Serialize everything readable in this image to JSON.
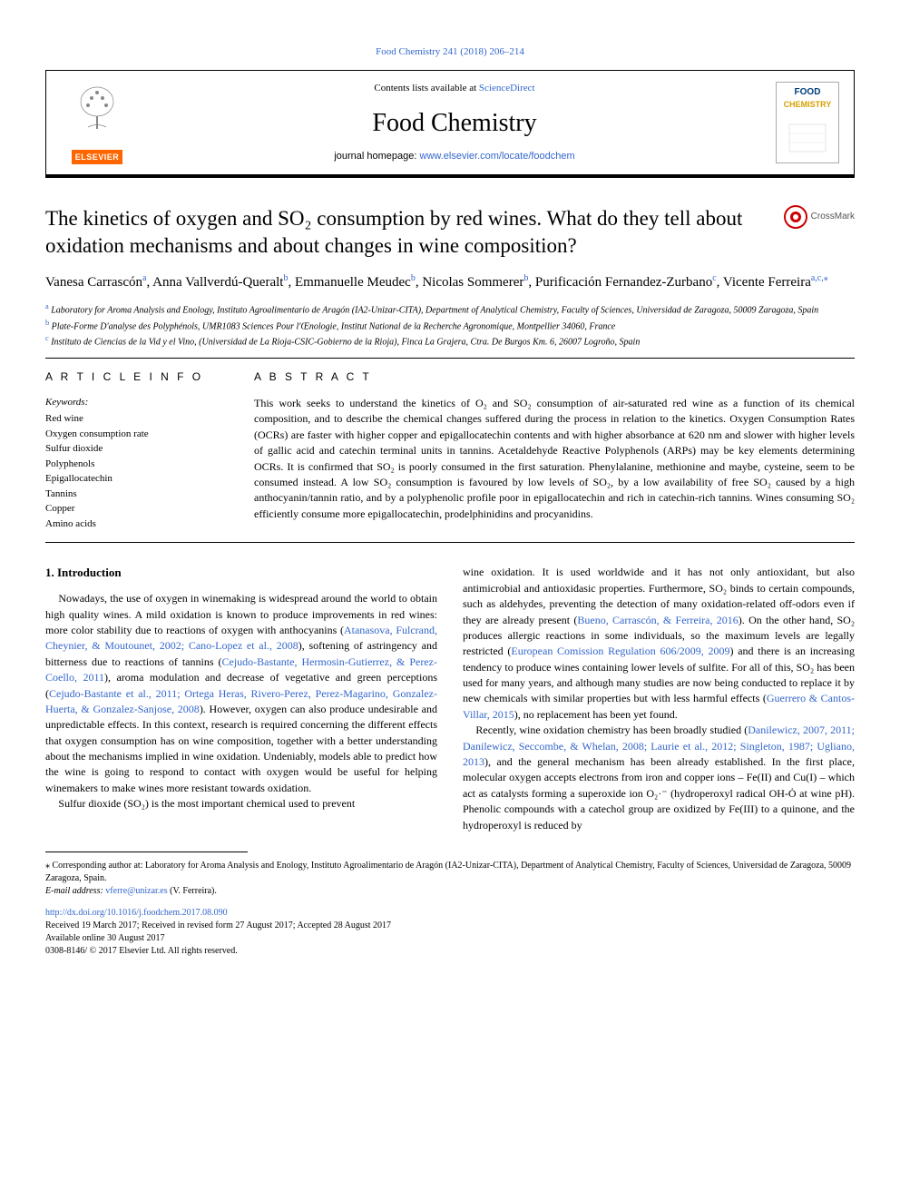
{
  "page_citation": "Food Chemistry 241 (2018) 206–214",
  "header": {
    "contents_prefix": "Contents lists available at ",
    "contents_link": "ScienceDirect",
    "journal": "Food Chemistry",
    "homepage_prefix": "journal homepage: ",
    "homepage_url": "www.elsevier.com/locate/foodchem",
    "publisher_word": "ELSEVIER",
    "cover_fc": "FOOD",
    "cover_chem": "CHEMISTRY"
  },
  "crossmark_label": "CrossMark",
  "title": "The kinetics of oxygen and SO₂ consumption by red wines. What do they tell about oxidation mechanisms and about changes in wine composition?",
  "authors_html": "Vanesa Carrascón<sup>a</sup>, Anna Vallverdú-Queralt<sup>b</sup>, Emmanuelle Meudec<sup>b</sup>, Nicolas Sommerer<sup>b</sup>, Purificación Fernandez-Zurbano<sup>c</sup>, Vicente Ferreira<sup>a,c,</sup>",
  "authors": [
    {
      "name": "Vanesa Carrascón",
      "sup": "a"
    },
    {
      "name": "Anna Vallverdú-Queralt",
      "sup": "b"
    },
    {
      "name": "Emmanuelle Meudec",
      "sup": "b"
    },
    {
      "name": "Nicolas Sommerer",
      "sup": "b"
    },
    {
      "name": "Purificación Fernandez-Zurbano",
      "sup": "c"
    },
    {
      "name": "Vicente Ferreira",
      "sup": "a,c,⁎"
    }
  ],
  "affiliations": [
    {
      "sup": "a",
      "text": "Laboratory for Aroma Analysis and Enology, Instituto Agroalimentario de Aragón (IA2-Unizar-CITA), Department of Analytical Chemistry, Faculty of Sciences, Universidad de Zaragoza, 50009 Zaragoza, Spain"
    },
    {
      "sup": "b",
      "text": "Plate-Forme D'analyse des Polyphénols, UMR1083 Sciences Pour l'Œnologie, Institut National de la Recherche Agronomique, Montpellier 34060, France"
    },
    {
      "sup": "c",
      "text": "Instituto de Ciencias de la Vid y el Vino, (Universidad de La Rioja-CSIC-Gobierno de la Rioja), Finca La Grajera, Ctra. De Burgos Km. 6, 26007 Logroño, Spain"
    }
  ],
  "article_info": {
    "heading": "A R T I C L E  I N F O",
    "keywords_label": "Keywords:",
    "keywords": [
      "Red wine",
      "Oxygen consumption rate",
      "Sulfur dioxide",
      "Polyphenols",
      "Epigallocatechin",
      "Tannins",
      "Copper",
      "Amino acids"
    ]
  },
  "abstract": {
    "heading": "A B S T R A C T",
    "text": "This work seeks to understand the kinetics of O₂ and SO₂ consumption of air-saturated red wine as a function of its chemical composition, and to describe the chemical changes suffered during the process in relation to the kinetics. Oxygen Consumption Rates (OCRs) are faster with higher copper and epigallocatechin contents and with higher absorbance at 620 nm and slower with higher levels of gallic acid and catechin terminal units in tannins. Acetaldehyde Reactive Polyphenols (ARPs) may be key elements determining OCRs. It is confirmed that SO₂ is poorly consumed in the first saturation. Phenylalanine, methionine and maybe, cysteine, seem to be consumed instead. A low SO₂ consumption is favoured by low levels of SO₂, by a low availability of free SO₂ caused by a high anthocyanin/tannin ratio, and by a polyphenolic profile poor in epigallocatechin and rich in catechin-rich tannins. Wines consuming SO₂ efficiently consume more epigallocatechin, prodelphinidins and procyanidins."
  },
  "section_heading": "1. Introduction",
  "col1": {
    "p1a": "Nowadays, the use of oxygen in winemaking is widespread around the world to obtain high quality wines. A mild oxidation is known to produce improvements in red wines: more color stability due to reactions of oxygen with anthocyanins (",
    "p1_ref1": "Atanasova, Fulcrand, Cheynier, & Moutounet, 2002; Cano-Lopez et al., 2008",
    "p1b": "), softening of astringency and bitterness due to reactions of tannins (",
    "p1_ref2": "Cejudo-Bastante, Hermosin-Gutierrez, & Perez-Coello, 2011",
    "p1c": "), aroma modulation and decrease of vegetative and green perceptions (",
    "p1_ref3": "Cejudo-Bastante et al., 2011; Ortega Heras, Rivero-Perez, Perez-Magarino, Gonzalez-Huerta, & Gonzalez-Sanjose, 2008",
    "p1d": "). However, oxygen can also produce undesirable and unpredictable effects. In this context, research is required concerning the different effects that oxygen consumption has on wine composition, together with a better understanding about the mechanisms implied in wine oxidation. Undeniably, models able to predict how the wine is going to respond to contact with oxygen would be useful for helping winemakers to make wines more resistant towards oxidation.",
    "p2": "Sulfur dioxide (SO₂) is the most important chemical used to prevent"
  },
  "col2": {
    "p1a": "wine oxidation. It is used worldwide and it has not only antioxidant, but also antimicrobial and antioxidasic properties. Furthermore, SO₂ binds to certain compounds, such as aldehydes, preventing the detection of many oxidation-related off-odors even if they are already present (",
    "p1_ref1": "Bueno, Carrascón, & Ferreira, 2016",
    "p1b": "). On the other hand, SO₂ produces allergic reactions in some individuals, so the maximum levels are legally restricted (",
    "p1_ref2": "European Comission Regulation 606/2009, 2009",
    "p1c": ") and there is an increasing tendency to produce wines containing lower levels of sulfite. For all of this, SO₂ has been used for many years, and although many studies are now being conducted to replace it by new chemicals with similar properties but with less harmful effects (",
    "p1_ref3": "Guerrero & Cantos-Villar, 2015",
    "p1d": "), no replacement has been yet found.",
    "p2a": "Recently, wine oxidation chemistry has been broadly studied (",
    "p2_ref1": "Danilewicz, 2007, 2011; Danilewicz, Seccombe, & Whelan, 2008; Laurie et al., 2012; Singleton, 1987; Ugliano, 2013",
    "p2b": "), and the general mechanism has been already established. In the first place, molecular oxygen accepts electrons from iron and copper ions – Fe(II) and Cu(I) – which act as catalysts forming a superoxide ion O₂·⁻ (hydroperoxyl radical OH-Ȯ at wine pH). Phenolic compounds with a catechol group are oxidized by Fe(III) to a quinone, and the hydroperoxyl is reduced by"
  },
  "footnote": {
    "corr_symbol": "⁎",
    "corr_text": " Corresponding author at: Laboratory for Aroma Analysis and Enology, Instituto Agroalimentario de Aragón (IA2-Unizar-CITA), Department of Analytical Chemistry, Faculty of Sciences, Universidad de Zaragoza, 50009 Zaragoza, Spain.",
    "email_label": "E-mail address: ",
    "email": "vferre@unizar.es",
    "email_suffix": " (V. Ferreira)."
  },
  "doi": {
    "url": "http://dx.doi.org/10.1016/j.foodchem.2017.08.090",
    "received": "Received 19 March 2017; Received in revised form 27 August 2017; Accepted 28 August 2017",
    "available": "Available online 30 August 2017",
    "copyright": "0308-8146/ © 2017 Elsevier Ltd. All rights reserved."
  },
  "colors": {
    "link": "#3366cc",
    "elsevier_orange": "#ff6600",
    "food_blue": "#003d7a",
    "chem_gold": "#d4a000",
    "crossmark_red": "#c00000"
  }
}
